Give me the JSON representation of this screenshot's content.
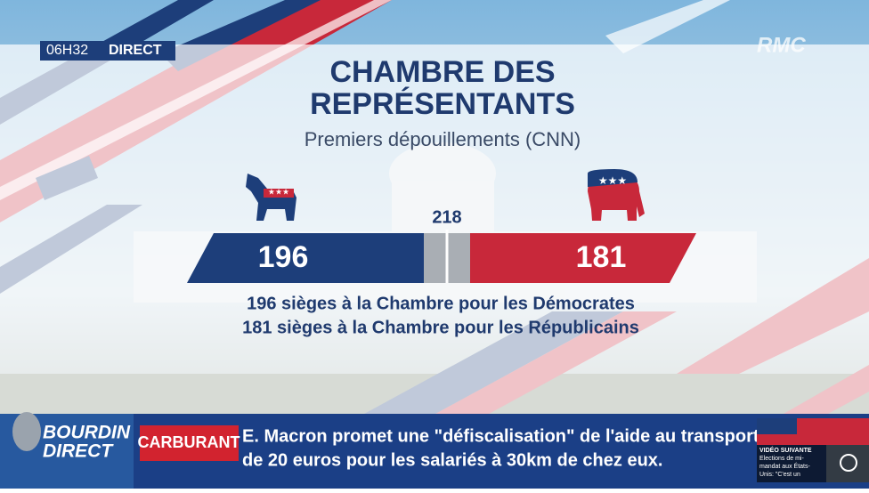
{
  "header": {
    "time": "06H32",
    "live": "DIRECT",
    "channel": "RMC"
  },
  "title_lines": [
    "CHAMBRE DES",
    "REPRÉSENTANTS"
  ],
  "subtitle": "Premiers dépouillements (CNN)",
  "results": {
    "majority": 218,
    "democrats": 196,
    "republicans": 181,
    "lines": [
      "196 sièges à la Chambre pour les Démocrates",
      "181 sièges à la Chambre pour les Républicains"
    ]
  },
  "ticker": {
    "show": [
      "BOURDIN",
      "DIRECT"
    ],
    "tag": "CARBURANT",
    "headline": [
      "E. Macron promet une \"défiscalisation\" de l'aide au transport",
      "de 20 euros pour les salariés à 30km de chez eux."
    ]
  },
  "next_video": {
    "label": "VIDÉO SUIVANTE",
    "text": [
      "Elections de mi-",
      "mandat aux États-",
      "Unis: \"C'est un"
    ]
  }
}
